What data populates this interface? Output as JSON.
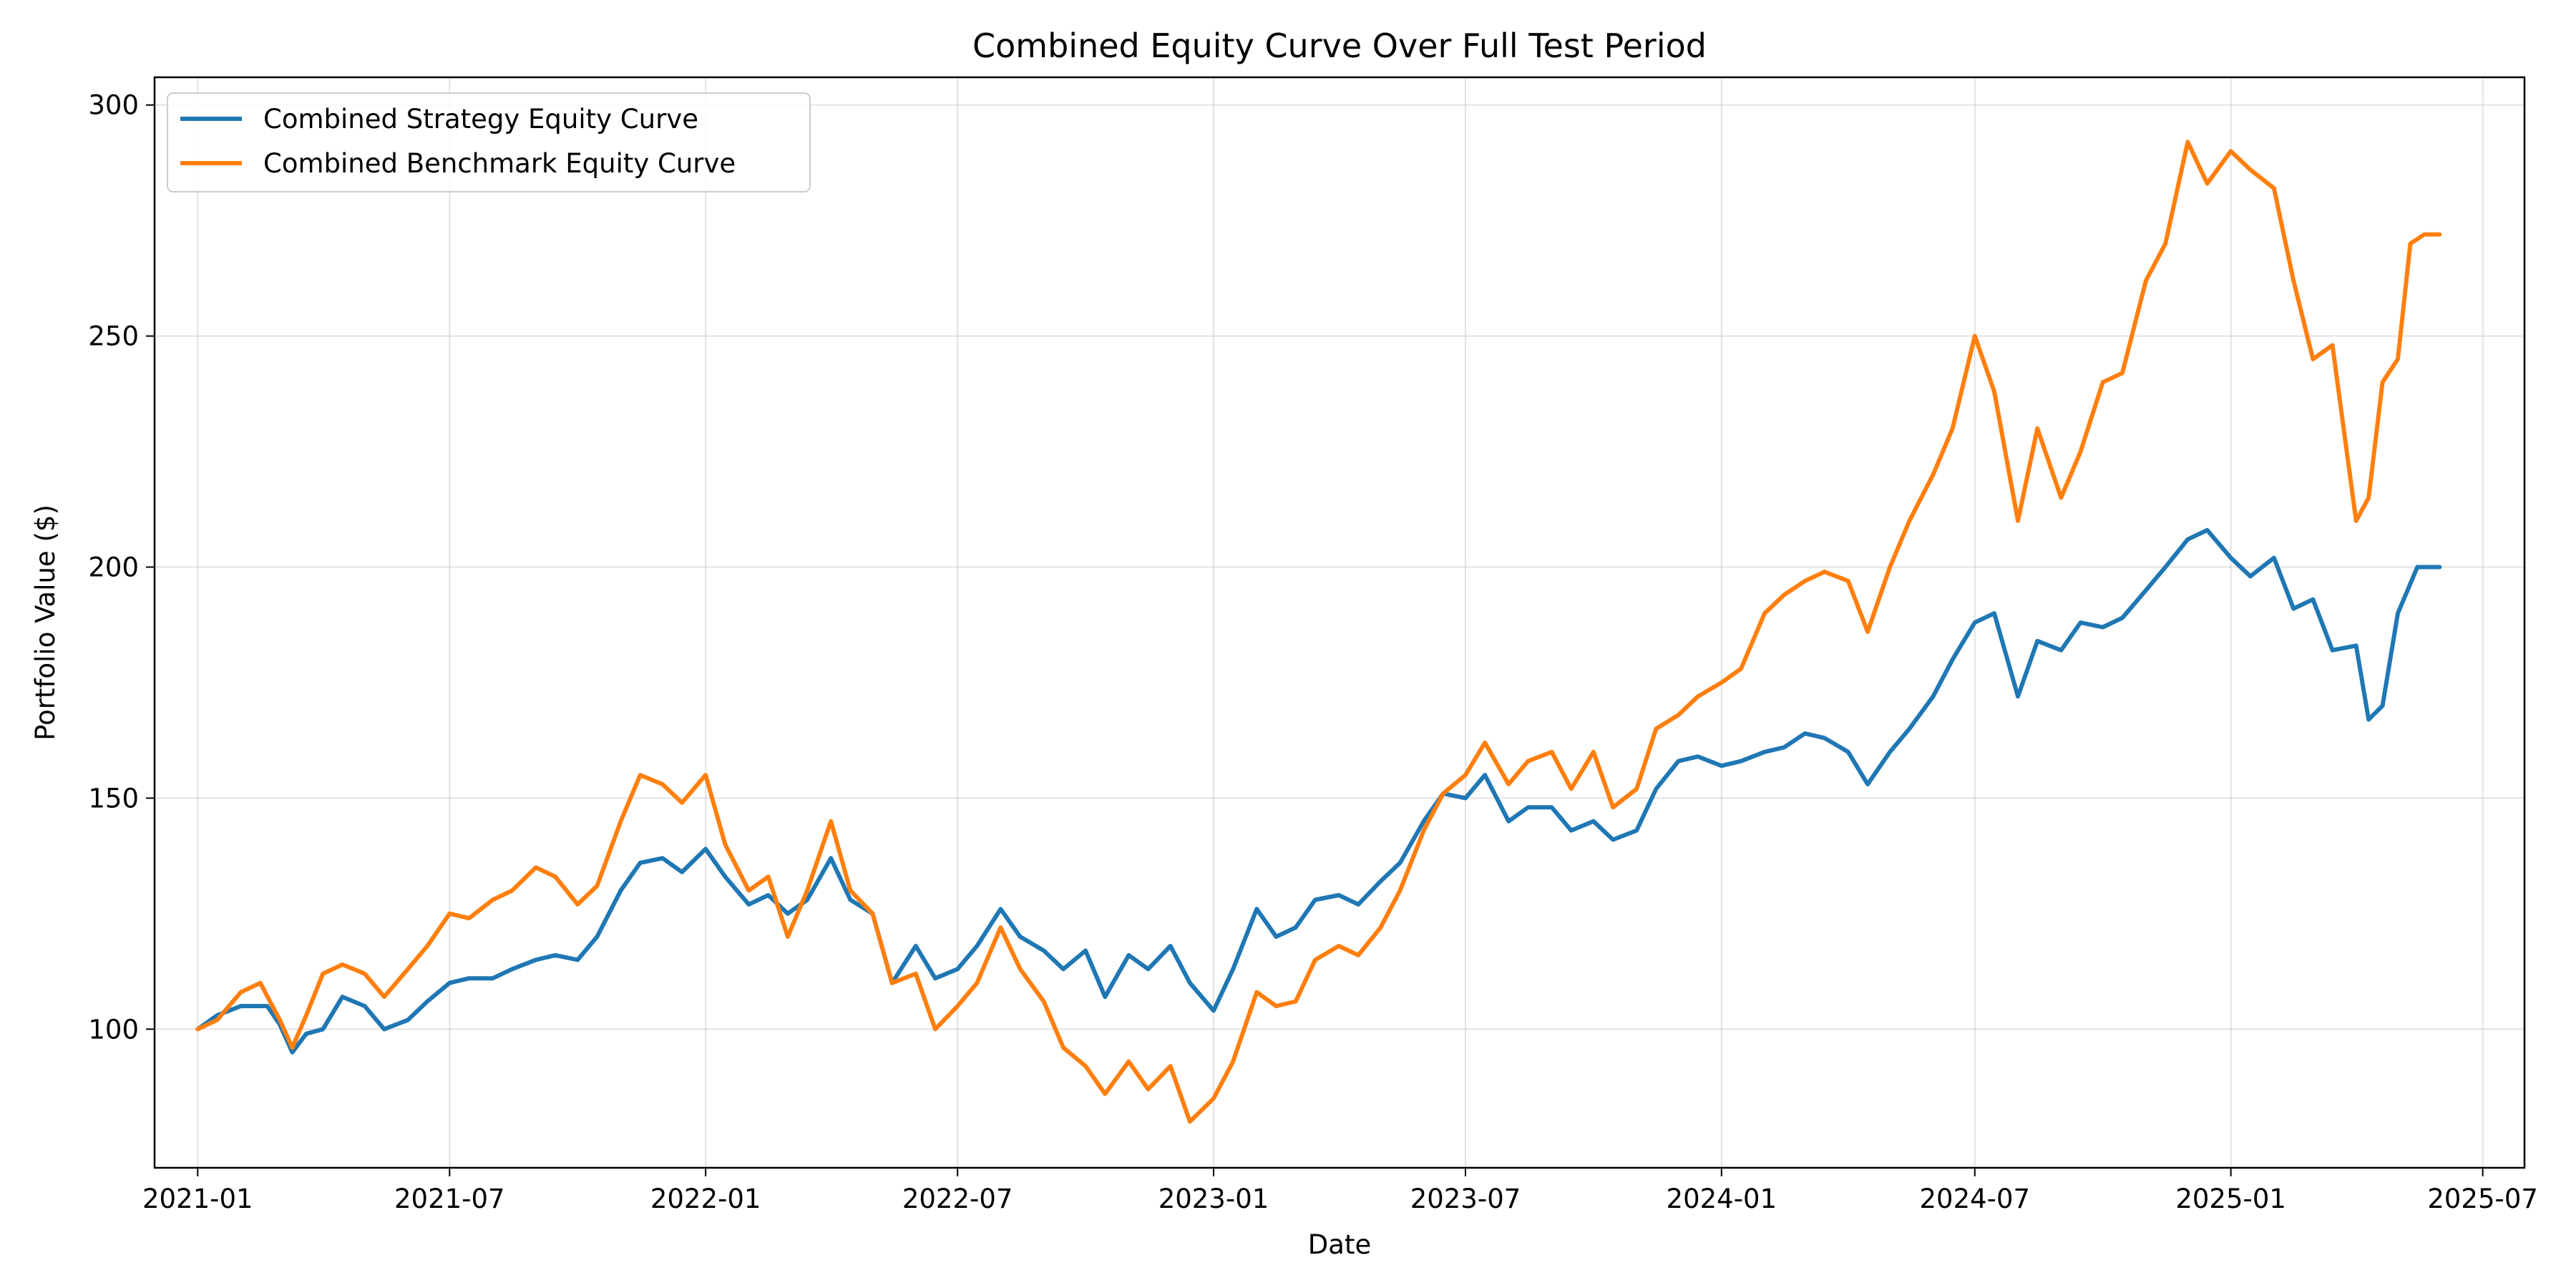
{
  "chart_data": {
    "type": "line",
    "title": "Combined Equity Curve Over Full Test Period",
    "xlabel": "Date",
    "ylabel": "Portfolio Value ($)",
    "x_scale": "date",
    "xlim": [
      "2020-12-01",
      "2025-07-31"
    ],
    "ylim": [
      70,
      306
    ],
    "x_ticks": [
      "2021-01-01",
      "2021-07-01",
      "2022-01-01",
      "2022-07-01",
      "2023-01-01",
      "2023-07-01",
      "2024-01-01",
      "2024-07-01",
      "2025-01-01",
      "2025-07-01"
    ],
    "x_tick_labels": [
      "2021-01",
      "2021-07",
      "2022-01",
      "2022-07",
      "2023-01",
      "2023-07",
      "2024-01",
      "2024-07",
      "2025-01",
      "2025-07"
    ],
    "y_ticks": [
      100,
      150,
      200,
      250,
      300
    ],
    "y_tick_labels": [
      "100",
      "150",
      "200",
      "250",
      "300"
    ],
    "grid": true,
    "legend_position": "top-left",
    "series": [
      {
        "name": "Combined Strategy Equity Curve",
        "color": "#1f77b4",
        "points": [
          [
            "2021-01-01",
            100
          ],
          [
            "2021-01-15",
            103
          ],
          [
            "2021-02-01",
            105
          ],
          [
            "2021-02-20",
            105
          ],
          [
            "2021-03-01",
            101
          ],
          [
            "2021-03-10",
            95
          ],
          [
            "2021-03-20",
            99
          ],
          [
            "2021-04-01",
            100
          ],
          [
            "2021-04-15",
            107
          ],
          [
            "2021-05-01",
            105
          ],
          [
            "2021-05-15",
            100
          ],
          [
            "2021-06-01",
            102
          ],
          [
            "2021-06-15",
            106
          ],
          [
            "2021-07-01",
            110
          ],
          [
            "2021-07-15",
            111
          ],
          [
            "2021-08-01",
            111
          ],
          [
            "2021-08-15",
            113
          ],
          [
            "2021-09-01",
            115
          ],
          [
            "2021-09-15",
            116
          ],
          [
            "2021-10-01",
            115
          ],
          [
            "2021-10-15",
            120
          ],
          [
            "2021-11-01",
            130
          ],
          [
            "2021-11-15",
            136
          ],
          [
            "2021-12-01",
            137
          ],
          [
            "2021-12-15",
            134
          ],
          [
            "2022-01-01",
            139
          ],
          [
            "2022-01-15",
            133
          ],
          [
            "2022-02-01",
            127
          ],
          [
            "2022-02-15",
            129
          ],
          [
            "2022-03-01",
            125
          ],
          [
            "2022-03-15",
            128
          ],
          [
            "2022-04-01",
            137
          ],
          [
            "2022-04-15",
            128
          ],
          [
            "2022-05-01",
            125
          ],
          [
            "2022-05-15",
            110
          ],
          [
            "2022-06-01",
            118
          ],
          [
            "2022-06-15",
            111
          ],
          [
            "2022-07-01",
            113
          ],
          [
            "2022-07-15",
            118
          ],
          [
            "2022-08-01",
            126
          ],
          [
            "2022-08-15",
            120
          ],
          [
            "2022-09-01",
            117
          ],
          [
            "2022-09-15",
            113
          ],
          [
            "2022-10-01",
            117
          ],
          [
            "2022-10-15",
            107
          ],
          [
            "2022-11-01",
            116
          ],
          [
            "2022-11-15",
            113
          ],
          [
            "2022-12-01",
            118
          ],
          [
            "2022-12-15",
            110
          ],
          [
            "2023-01-01",
            104
          ],
          [
            "2023-01-15",
            113
          ],
          [
            "2023-02-01",
            126
          ],
          [
            "2023-02-15",
            120
          ],
          [
            "2023-03-01",
            122
          ],
          [
            "2023-03-15",
            128
          ],
          [
            "2023-04-01",
            129
          ],
          [
            "2023-04-15",
            127
          ],
          [
            "2023-05-01",
            132
          ],
          [
            "2023-05-15",
            136
          ],
          [
            "2023-06-01",
            145
          ],
          [
            "2023-06-15",
            151
          ],
          [
            "2023-07-01",
            150
          ],
          [
            "2023-07-15",
            155
          ],
          [
            "2023-08-01",
            145
          ],
          [
            "2023-08-15",
            148
          ],
          [
            "2023-09-01",
            148
          ],
          [
            "2023-09-15",
            143
          ],
          [
            "2023-10-01",
            145
          ],
          [
            "2023-10-15",
            141
          ],
          [
            "2023-11-01",
            143
          ],
          [
            "2023-11-15",
            152
          ],
          [
            "2023-12-01",
            158
          ],
          [
            "2023-12-15",
            159
          ],
          [
            "2024-01-01",
            157
          ],
          [
            "2024-01-15",
            158
          ],
          [
            "2024-02-01",
            160
          ],
          [
            "2024-02-15",
            161
          ],
          [
            "2024-03-01",
            164
          ],
          [
            "2024-03-15",
            163
          ],
          [
            "2024-04-01",
            160
          ],
          [
            "2024-04-15",
            153
          ],
          [
            "2024-05-01",
            160
          ],
          [
            "2024-05-15",
            165
          ],
          [
            "2024-06-01",
            172
          ],
          [
            "2024-06-15",
            180
          ],
          [
            "2024-07-01",
            188
          ],
          [
            "2024-07-15",
            190
          ],
          [
            "2024-08-01",
            172
          ],
          [
            "2024-08-15",
            184
          ],
          [
            "2024-09-01",
            182
          ],
          [
            "2024-09-15",
            188
          ],
          [
            "2024-10-01",
            187
          ],
          [
            "2024-10-15",
            189
          ],
          [
            "2024-11-01",
            195
          ],
          [
            "2024-11-15",
            200
          ],
          [
            "2024-12-01",
            206
          ],
          [
            "2024-12-15",
            208
          ],
          [
            "2025-01-01",
            202
          ],
          [
            "2025-01-15",
            198
          ],
          [
            "2025-02-01",
            202
          ],
          [
            "2025-02-15",
            191
          ],
          [
            "2025-03-01",
            193
          ],
          [
            "2025-03-15",
            182
          ],
          [
            "2025-04-01",
            183
          ],
          [
            "2025-04-10",
            167
          ],
          [
            "2025-04-20",
            170
          ],
          [
            "2025-05-01",
            190
          ],
          [
            "2025-05-15",
            200
          ],
          [
            "2025-05-31",
            200
          ]
        ]
      },
      {
        "name": "Combined Benchmark Equity Curve",
        "color": "#ff7f0e",
        "points": [
          [
            "2021-01-01",
            100
          ],
          [
            "2021-01-15",
            102
          ],
          [
            "2021-02-01",
            108
          ],
          [
            "2021-02-15",
            110
          ],
          [
            "2021-03-01",
            102
          ],
          [
            "2021-03-10",
            96
          ],
          [
            "2021-03-20",
            103
          ],
          [
            "2021-04-01",
            112
          ],
          [
            "2021-04-15",
            114
          ],
          [
            "2021-05-01",
            112
          ],
          [
            "2021-05-15",
            107
          ],
          [
            "2021-06-01",
            113
          ],
          [
            "2021-06-15",
            118
          ],
          [
            "2021-07-01",
            125
          ],
          [
            "2021-07-15",
            124
          ],
          [
            "2021-08-01",
            128
          ],
          [
            "2021-08-15",
            130
          ],
          [
            "2021-09-01",
            135
          ],
          [
            "2021-09-15",
            133
          ],
          [
            "2021-10-01",
            127
          ],
          [
            "2021-10-15",
            131
          ],
          [
            "2021-11-01",
            145
          ],
          [
            "2021-11-15",
            155
          ],
          [
            "2021-12-01",
            153
          ],
          [
            "2021-12-15",
            149
          ],
          [
            "2022-01-01",
            155
          ],
          [
            "2022-01-15",
            140
          ],
          [
            "2022-02-01",
            130
          ],
          [
            "2022-02-15",
            133
          ],
          [
            "2022-03-01",
            120
          ],
          [
            "2022-03-15",
            130
          ],
          [
            "2022-04-01",
            145
          ],
          [
            "2022-04-15",
            130
          ],
          [
            "2022-05-01",
            125
          ],
          [
            "2022-05-15",
            110
          ],
          [
            "2022-06-01",
            112
          ],
          [
            "2022-06-15",
            100
          ],
          [
            "2022-07-01",
            105
          ],
          [
            "2022-07-15",
            110
          ],
          [
            "2022-08-01",
            122
          ],
          [
            "2022-08-15",
            113
          ],
          [
            "2022-09-01",
            106
          ],
          [
            "2022-09-15",
            96
          ],
          [
            "2022-10-01",
            92
          ],
          [
            "2022-10-15",
            86
          ],
          [
            "2022-11-01",
            93
          ],
          [
            "2022-11-15",
            87
          ],
          [
            "2022-12-01",
            92
          ],
          [
            "2022-12-15",
            80
          ],
          [
            "2023-01-01",
            85
          ],
          [
            "2023-01-15",
            93
          ],
          [
            "2023-02-01",
            108
          ],
          [
            "2023-02-15",
            105
          ],
          [
            "2023-03-01",
            106
          ],
          [
            "2023-03-15",
            115
          ],
          [
            "2023-04-01",
            118
          ],
          [
            "2023-04-15",
            116
          ],
          [
            "2023-05-01",
            122
          ],
          [
            "2023-05-15",
            130
          ],
          [
            "2023-06-01",
            143
          ],
          [
            "2023-06-15",
            151
          ],
          [
            "2023-07-01",
            155
          ],
          [
            "2023-07-15",
            162
          ],
          [
            "2023-08-01",
            153
          ],
          [
            "2023-08-15",
            158
          ],
          [
            "2023-09-01",
            160
          ],
          [
            "2023-09-15",
            152
          ],
          [
            "2023-10-01",
            160
          ],
          [
            "2023-10-15",
            148
          ],
          [
            "2023-11-01",
            152
          ],
          [
            "2023-11-15",
            165
          ],
          [
            "2023-12-01",
            168
          ],
          [
            "2023-12-15",
            172
          ],
          [
            "2024-01-01",
            175
          ],
          [
            "2024-01-15",
            178
          ],
          [
            "2024-02-01",
            190
          ],
          [
            "2024-02-15",
            194
          ],
          [
            "2024-03-01",
            197
          ],
          [
            "2024-03-15",
            199
          ],
          [
            "2024-04-01",
            197
          ],
          [
            "2024-04-15",
            186
          ],
          [
            "2024-05-01",
            200
          ],
          [
            "2024-05-15",
            210
          ],
          [
            "2024-06-01",
            220
          ],
          [
            "2024-06-15",
            230
          ],
          [
            "2024-07-01",
            250
          ],
          [
            "2024-07-15",
            238
          ],
          [
            "2024-08-01",
            210
          ],
          [
            "2024-08-15",
            230
          ],
          [
            "2024-09-01",
            215
          ],
          [
            "2024-09-15",
            225
          ],
          [
            "2024-10-01",
            240
          ],
          [
            "2024-10-15",
            242
          ],
          [
            "2024-11-01",
            262
          ],
          [
            "2024-11-15",
            270
          ],
          [
            "2024-12-01",
            292
          ],
          [
            "2024-12-15",
            283
          ],
          [
            "2025-01-01",
            290
          ],
          [
            "2025-01-15",
            286
          ],
          [
            "2025-02-01",
            282
          ],
          [
            "2025-02-15",
            262
          ],
          [
            "2025-03-01",
            245
          ],
          [
            "2025-03-15",
            248
          ],
          [
            "2025-04-01",
            210
          ],
          [
            "2025-04-10",
            215
          ],
          [
            "2025-04-20",
            240
          ],
          [
            "2025-05-01",
            245
          ],
          [
            "2025-05-10",
            270
          ],
          [
            "2025-05-20",
            272
          ],
          [
            "2025-05-31",
            272
          ]
        ]
      }
    ]
  }
}
